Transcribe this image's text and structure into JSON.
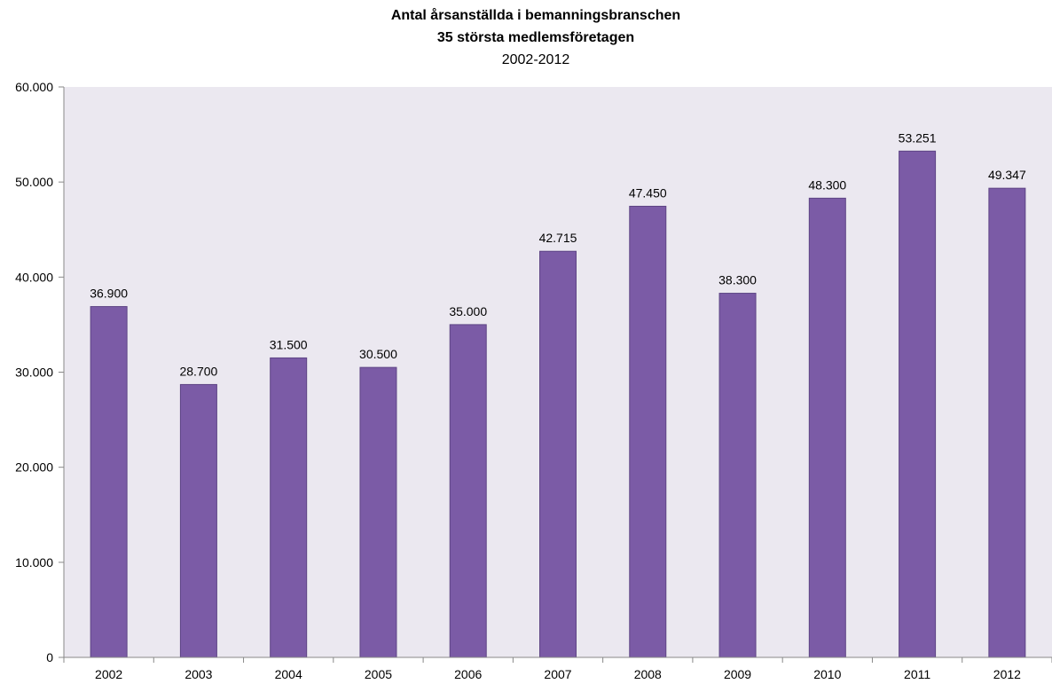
{
  "chart_data": {
    "type": "bar",
    "title": "Antal årsanställda i bemanningsbranschen",
    "subtitle": "35 största medlemsföretagen",
    "period": "2002-2012",
    "categories": [
      "2002",
      "2003",
      "2004",
      "2005",
      "2006",
      "2007",
      "2008",
      "2009",
      "2010",
      "2011",
      "2012"
    ],
    "values": [
      36900,
      28700,
      31500,
      30500,
      35000,
      42715,
      47450,
      38300,
      48300,
      53251,
      49347
    ],
    "value_labels": [
      "36.900",
      "28.700",
      "31.500",
      "30.500",
      "35.000",
      "42.715",
      "47.450",
      "38.300",
      "48.300",
      "53.251",
      "49.347"
    ],
    "ylim": [
      0,
      60000
    ],
    "y_ticks": [
      0,
      10000,
      20000,
      30000,
      40000,
      50000,
      60000
    ],
    "y_tick_labels": [
      "0",
      "10.000",
      "20.000",
      "30.000",
      "40.000",
      "50.000",
      "60.000"
    ],
    "xlabel": "",
    "ylabel": "",
    "grid": false,
    "legend": "none",
    "colors": {
      "bar": "#7b5ba6",
      "bar_stroke": "#5e4585",
      "plot_background": "#ebe8f0",
      "axis": "#888888"
    }
  }
}
